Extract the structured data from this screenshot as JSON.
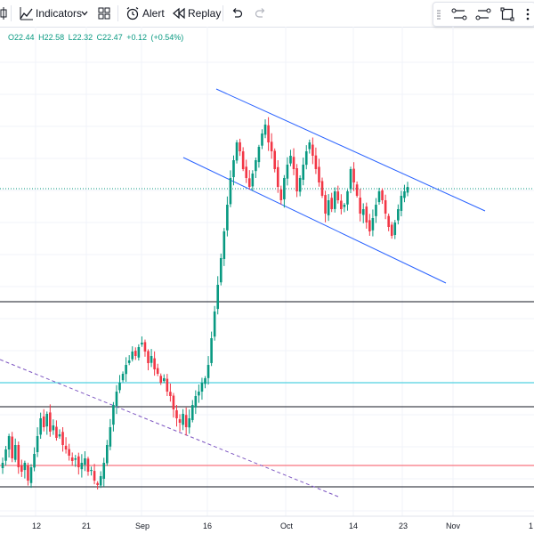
{
  "toolbar": {
    "indicators_label": "Indicators",
    "alert_label": "Alert",
    "replay_label": "Replay",
    "icons": [
      "candles-icon",
      "indicators-icon",
      "chevron-down-icon",
      "templates-icon",
      "alert-icon",
      "replay-icon",
      "undo-icon",
      "redo-icon"
    ]
  },
  "drawing_toolbar": {
    "icons": [
      "grip-icon",
      "line-tool-icon",
      "parallel-channel-icon",
      "rectangle-icon",
      "more-icon"
    ]
  },
  "ohlc": {
    "open_label": "O",
    "open": "22.44",
    "high_label": "H",
    "high": "22.58",
    "low_label": "L",
    "low": "22.32",
    "close_label": "C",
    "close": "22.47",
    "change": "+0.12",
    "change_pct": "(+0.54%)",
    "color": "#089981"
  },
  "colors": {
    "up": "#089981",
    "down": "#f23645",
    "channel": "#2962ff",
    "trend_dashed": "#7e57c2",
    "level_cyan": "#26c6da",
    "level_red": "#f7525f",
    "level_black": "#131722"
  },
  "x_axis": {
    "labels": [
      "12",
      "21",
      "Sep",
      "16",
      "Oct",
      "14",
      "23",
      "Nov",
      "1"
    ]
  }
}
